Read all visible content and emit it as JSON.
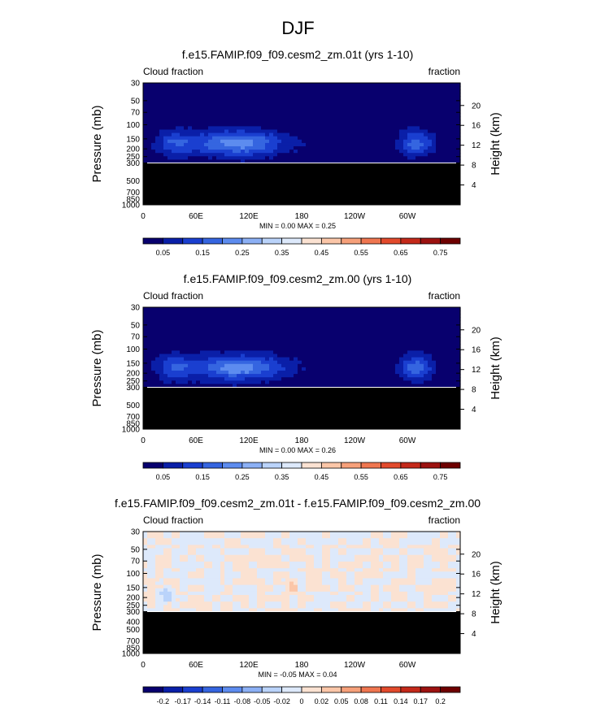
{
  "figure": {
    "title": "DJF"
  },
  "chart_data": [
    {
      "type": "heatmap",
      "title": "f.e15.FAMIP.f09_f09.cesm2_zm.01t (yrs 1-10)",
      "left_corner": "Cloud fraction",
      "right_corner": "fraction",
      "ylabel": "Pressure (mb)",
      "y2label": "Height (km)",
      "xticks": [
        "0",
        "60E",
        "120E",
        "180",
        "120W",
        "60W"
      ],
      "yticks": [
        "1000",
        "850",
        "700",
        "500",
        "300",
        "250",
        "200",
        "150",
        "100",
        "70",
        "50",
        "30"
      ],
      "y2ticks": [
        "4",
        "8",
        "12",
        "16",
        "20"
      ],
      "minmax_text": "MIN =   0.00  MAX =   0.25",
      "colorbar_labels": [
        "0.05",
        "0.15",
        "0.25",
        "0.35",
        "0.45",
        "0.55",
        "0.65",
        "0.75"
      ],
      "colors": [
        "#08006e",
        "#0a1fa8",
        "#1a3fd0",
        "#3565e0",
        "#5d8cef",
        "#8cb0f5",
        "#bad3fa",
        "#dde9fb",
        "#fbe2d2",
        "#fbc6a8",
        "#f6a07a",
        "#ef7650",
        "#e24a2c",
        "#c4291a",
        "#9c1210",
        "#6e0000"
      ],
      "missing_color": "#000000",
      "field": "base",
      "ylim": [
        1000,
        30
      ],
      "missing_below_mb": 300,
      "min": 0.0,
      "max": 0.25
    },
    {
      "type": "heatmap",
      "title": "f.e15.FAMIP.f09_f09.cesm2_zm.00 (yrs 1-10)",
      "left_corner": "Cloud fraction",
      "right_corner": "fraction",
      "ylabel": "Pressure (mb)",
      "y2label": "Height (km)",
      "xticks": [
        "0",
        "60E",
        "120E",
        "180",
        "120W",
        "60W"
      ],
      "yticks": [
        "1000",
        "850",
        "700",
        "500",
        "300",
        "250",
        "200",
        "150",
        "100",
        "70",
        "50",
        "30"
      ],
      "y2ticks": [
        "4",
        "8",
        "12",
        "16",
        "20"
      ],
      "minmax_text": "MIN =   0.00  MAX =   0.26",
      "colorbar_labels": [
        "0.05",
        "0.15",
        "0.25",
        "0.35",
        "0.45",
        "0.55",
        "0.65",
        "0.75"
      ],
      "colors": [
        "#08006e",
        "#0a1fa8",
        "#1a3fd0",
        "#3565e0",
        "#5d8cef",
        "#8cb0f5",
        "#bad3fa",
        "#dde9fb",
        "#fbe2d2",
        "#fbc6a8",
        "#f6a07a",
        "#ef7650",
        "#e24a2c",
        "#c4291a",
        "#9c1210",
        "#6e0000"
      ],
      "missing_color": "#000000",
      "field": "base",
      "ylim": [
        1000,
        30
      ],
      "missing_below_mb": 300,
      "min": 0.0,
      "max": 0.26
    },
    {
      "type": "heatmap",
      "title": "f.e15.FAMIP.f09_f09.cesm2_zm.01t - f.e15.FAMIP.f09_f09.cesm2_zm.00",
      "left_corner": "Cloud fraction",
      "right_corner": "fraction",
      "ylabel": "Pressure (mb)",
      "y2label": "Height (km)",
      "xticks": [
        "0",
        "60E",
        "120E",
        "180",
        "120W",
        "60W"
      ],
      "yticks": [
        "1000",
        "850",
        "700",
        "500",
        "400",
        "300",
        "250",
        "200",
        "150",
        "100",
        "70",
        "50",
        "30"
      ],
      "y2ticks": [
        "4",
        "8",
        "12",
        "16",
        "20"
      ],
      "minmax_text": "MIN =  -0.05  MAX =   0.04",
      "colorbar_labels": [
        "-0.2",
        "-0.17",
        "-0.14",
        "-0.11",
        "-0.08",
        "-0.05",
        "-0.02",
        "0",
        "0.02",
        "0.05",
        "0.08",
        "0.11",
        "0.14",
        "0.17",
        "0.2"
      ],
      "colors": [
        "#08006e",
        "#0a1fa8",
        "#1a3fd0",
        "#3565e0",
        "#5d8cef",
        "#8cb0f5",
        "#bad3fa",
        "#dde9fb",
        "#fbe2d2",
        "#fbc6a8",
        "#f6a07a",
        "#ef7650",
        "#e24a2c",
        "#c4291a",
        "#9c1210",
        "#6e0000"
      ],
      "missing_color": "#000000",
      "field": "diff",
      "ylim": [
        1000,
        30
      ],
      "missing_below_mb": 300,
      "min": -0.05,
      "max": 0.04
    }
  ]
}
